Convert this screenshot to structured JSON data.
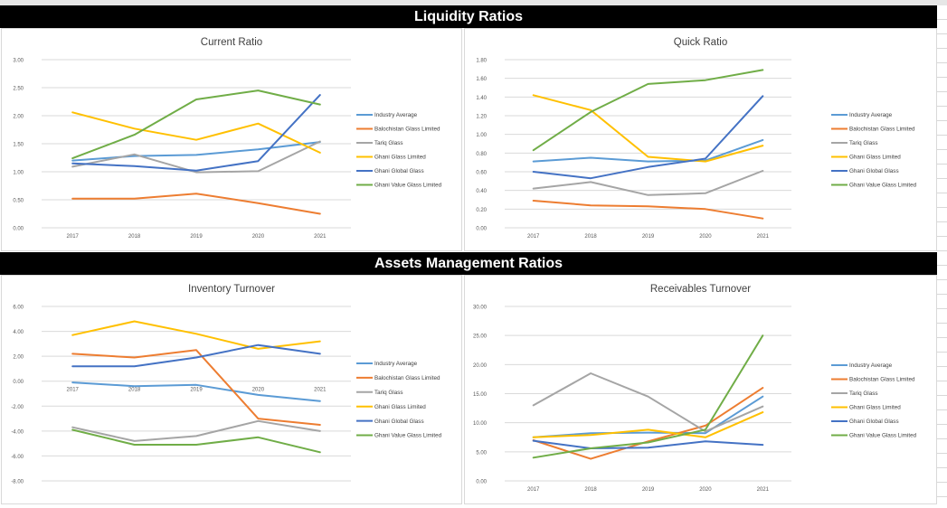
{
  "sections": {
    "liquidity_title": "Liquidity Ratios",
    "assets_title": "Assets Management Ratios"
  },
  "colors": {
    "Industry Average": "#5b9bd5",
    "Balochistan Glass Limited": "#ed7d31",
    "Tariq Glass": "#a5a5a5",
    "Ghani Glass Limited": "#ffc000",
    "Ghani Global Glass": "#4472c4",
    "Ghani Value Glass Limited": "#70ad47"
  },
  "chart_data": [
    {
      "type": "line",
      "title": "Current Ratio",
      "categories": [
        "2017",
        "2018",
        "2019",
        "2020",
        "2021"
      ],
      "ylim": [
        0,
        3
      ],
      "yticks": [
        0,
        0.5,
        1,
        1.5,
        2,
        2.5,
        3
      ],
      "ytick_labels": [
        "0.00",
        "0.50",
        "1.00",
        "1.50",
        "2.00",
        "2.50",
        "3.00"
      ],
      "grid": true,
      "legend": "right",
      "series": [
        {
          "name": "Industry Average",
          "values": [
            1.2,
            1.28,
            1.3,
            1.4,
            1.53
          ]
        },
        {
          "name": "Balochistan Glass Limited",
          "values": [
            0.52,
            0.52,
            0.61,
            0.44,
            0.25
          ]
        },
        {
          "name": "Tariq Glass",
          "values": [
            1.09,
            1.31,
            0.99,
            1.01,
            1.54
          ]
        },
        {
          "name": "Ghani Glass Limited",
          "values": [
            2.06,
            1.77,
            1.57,
            1.86,
            1.34
          ]
        },
        {
          "name": "Ghani Global Glass",
          "values": [
            1.15,
            1.1,
            1.02,
            1.19,
            2.37
          ]
        },
        {
          "name": "Ghani Value Glass Limited",
          "values": [
            1.24,
            1.66,
            2.29,
            2.45,
            2.2
          ]
        }
      ]
    },
    {
      "type": "line",
      "title": "Quick Ratio",
      "categories": [
        "2017",
        "2018",
        "2019",
        "2020",
        "2021"
      ],
      "ylim": [
        0,
        1.8
      ],
      "yticks": [
        0,
        0.2,
        0.4,
        0.6,
        0.8,
        1.0,
        1.2,
        1.4,
        1.6,
        1.8
      ],
      "ytick_labels": [
        "0.00",
        "0.20",
        "0.40",
        "0.60",
        "0.80",
        "1.00",
        "1.20",
        "1.40",
        "1.60",
        "1.80"
      ],
      "grid": true,
      "legend": "right",
      "series": [
        {
          "name": "Industry Average",
          "values": [
            0.71,
            0.75,
            0.71,
            0.72,
            0.94
          ]
        },
        {
          "name": "Balochistan Glass Limited",
          "values": [
            0.29,
            0.24,
            0.23,
            0.2,
            0.1
          ]
        },
        {
          "name": "Tariq Glass",
          "values": [
            0.42,
            0.49,
            0.35,
            0.37,
            0.61
          ]
        },
        {
          "name": "Ghani Glass Limited",
          "values": [
            1.42,
            1.26,
            0.76,
            0.71,
            0.88
          ]
        },
        {
          "name": "Ghani Global Glass",
          "values": [
            0.6,
            0.53,
            0.65,
            0.74,
            1.41
          ]
        },
        {
          "name": "Ghani Value Glass Limited",
          "values": [
            0.83,
            1.24,
            1.54,
            1.58,
            1.69
          ]
        }
      ]
    },
    {
      "type": "line",
      "title": "Inventory Turnover",
      "categories": [
        "2017",
        "2018",
        "2019",
        "2020",
        "2021"
      ],
      "ylim": [
        -8,
        6
      ],
      "yticks": [
        -8,
        -6,
        -4,
        -2,
        0,
        2,
        4,
        6
      ],
      "ytick_labels": [
        "-8.00",
        "-6.00",
        "-4.00",
        "-2.00",
        "0.00",
        "2.00",
        "4.00",
        "6.00"
      ],
      "grid": true,
      "legend": "right",
      "series": [
        {
          "name": "Industry Average",
          "values": [
            -0.1,
            -0.4,
            -0.3,
            -1.1,
            -1.6
          ]
        },
        {
          "name": "Balochistan Glass Limited",
          "values": [
            2.2,
            1.9,
            2.5,
            -3.0,
            -3.5
          ]
        },
        {
          "name": "Tariq Glass",
          "values": [
            -3.7,
            -4.8,
            -4.4,
            -3.2,
            -4.0
          ]
        },
        {
          "name": "Ghani Glass Limited",
          "values": [
            3.7,
            4.8,
            3.8,
            2.6,
            3.2
          ]
        },
        {
          "name": "Ghani Global Glass",
          "values": [
            1.2,
            1.2,
            1.9,
            2.9,
            2.2
          ]
        },
        {
          "name": "Ghani Value Glass Limited",
          "values": [
            -3.9,
            -5.1,
            -5.1,
            -4.5,
            -5.7
          ]
        }
      ]
    },
    {
      "type": "line",
      "title": "Receivables Turnover",
      "categories": [
        "2017",
        "2018",
        "2019",
        "2020",
        "2021"
      ],
      "ylim": [
        0,
        30
      ],
      "yticks": [
        0,
        5,
        10,
        15,
        20,
        25,
        30
      ],
      "ytick_labels": [
        "0.00",
        "5.00",
        "10.00",
        "15.00",
        "20.00",
        "25.00",
        "30.00"
      ],
      "grid": true,
      "legend": "right",
      "series": [
        {
          "name": "Industry Average",
          "values": [
            7.5,
            8.2,
            8.3,
            8.2,
            14.5
          ]
        },
        {
          "name": "Balochistan Glass Limited",
          "values": [
            7.0,
            3.8,
            6.8,
            9.5,
            16.0
          ]
        },
        {
          "name": "Tariq Glass",
          "values": [
            13.0,
            18.5,
            14.5,
            8.5,
            12.8
          ]
        },
        {
          "name": "Ghani Glass Limited",
          "values": [
            7.5,
            7.9,
            8.8,
            7.5,
            11.8
          ]
        },
        {
          "name": "Ghani Global Glass",
          "values": [
            6.9,
            5.6,
            5.7,
            6.8,
            6.2
          ]
        },
        {
          "name": "Ghani Value Glass Limited",
          "values": [
            4.0,
            5.6,
            6.6,
            8.8,
            25.0
          ]
        }
      ]
    }
  ]
}
